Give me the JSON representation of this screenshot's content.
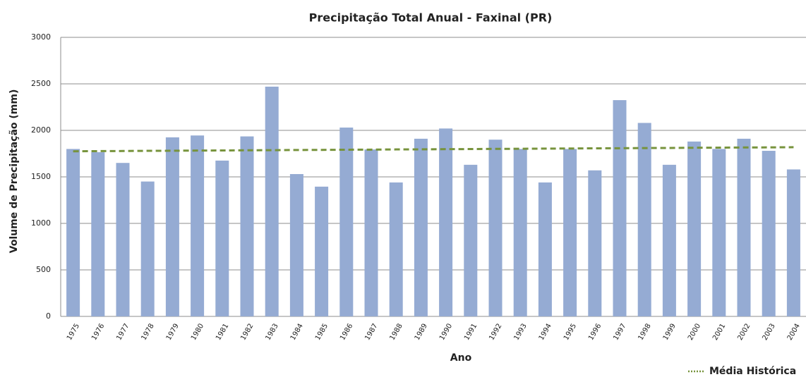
{
  "chart_data": {
    "type": "bar",
    "title": "Precipitação Total Anual - Faxinal (PR)",
    "xlabel": "Ano",
    "ylabel": "Volume de Precipitação (mm)",
    "categories": [
      "1975",
      "1976",
      "1977",
      "1978",
      "1979",
      "1980",
      "1981",
      "1982",
      "1983",
      "1984",
      "1985",
      "1986",
      "1987",
      "1988",
      "1989",
      "1990",
      "1991",
      "1992",
      "1993",
      "1994",
      "1995",
      "1996",
      "1997",
      "1998",
      "1999",
      "2000",
      "2001",
      "2002",
      "2003",
      "2004"
    ],
    "series": [
      {
        "type": "bar",
        "color": "#95abd3",
        "values": [
          1800,
          1765,
          1650,
          1450,
          1925,
          1945,
          1675,
          1935,
          2470,
          1530,
          1395,
          2030,
          1795,
          1440,
          1910,
          2020,
          1630,
          1900,
          1800,
          1440,
          1800,
          1570,
          2325,
          2080,
          1630,
          1880,
          1800,
          1910,
          1780,
          1580
        ]
      },
      {
        "type": "line",
        "name": "Média Histórica",
        "color": "#77933c",
        "values": [
          1775,
          1777,
          1778,
          1780,
          1781,
          1783,
          1784,
          1786,
          1787,
          1789,
          1790,
          1792,
          1793,
          1795,
          1796,
          1798,
          1799,
          1801,
          1802,
          1804,
          1805,
          1807,
          1808,
          1810,
          1811,
          1813,
          1814,
          1816,
          1817,
          1819
        ]
      }
    ],
    "ylim": [
      0,
      3000
    ],
    "yticks": [
      0,
      500,
      1000,
      1500,
      2000,
      2500,
      3000
    ],
    "grid": true,
    "legend": "bottom-right"
  }
}
